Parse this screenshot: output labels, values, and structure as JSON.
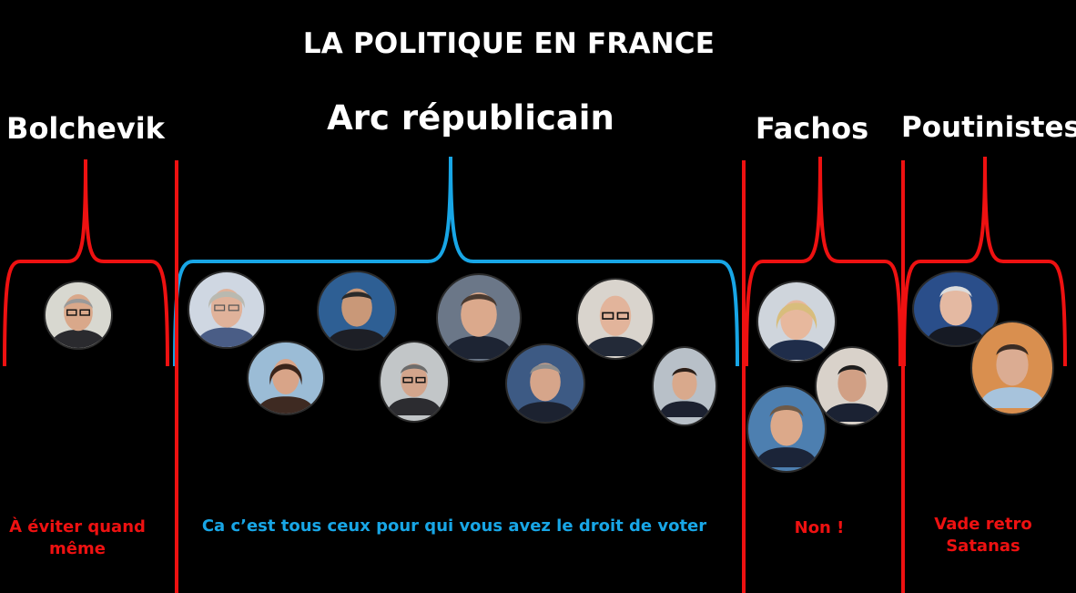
{
  "title": "LA POLITIQUE EN FRANCE",
  "colors": {
    "red": "#ee1111",
    "blue": "#18a6e6",
    "background": "#000000"
  },
  "categories": [
    {
      "id": "bolchevik",
      "title": "Bolchevik",
      "caption": "À éviter quand même",
      "color": "#ee1111"
    },
    {
      "id": "arc",
      "title": "Arc républicain",
      "caption": "Ca c’est tous ceux pour qui vous avez le droit de voter",
      "color": "#18a6e6"
    },
    {
      "id": "fachos",
      "title": "Fachos",
      "caption": "Non !",
      "color": "#ee1111"
    },
    {
      "id": "poutinistes",
      "title": "Poutinistes",
      "caption": "Vade retro Satanas",
      "color": "#ee1111"
    }
  ]
}
